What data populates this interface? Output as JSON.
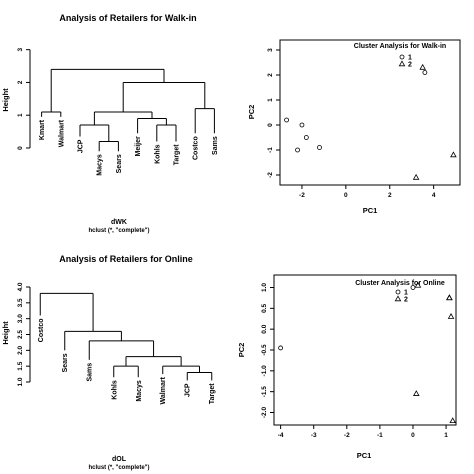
{
  "chart_data": [
    {
      "type": "dendrogram",
      "title": "Analysis of Retailers for Walk-in",
      "ylabel": "Height",
      "xlabel": "dWK",
      "sub": "hclust (*, \"complete\")",
      "yticks": [
        0,
        1,
        2,
        3
      ],
      "ylim": [
        0,
        3.6
      ],
      "leaves": [
        "Kmart",
        "Walmart",
        "JCP",
        "Macys",
        "Sears",
        "Meijer",
        "Kohls",
        "Target",
        "Costco",
        "Sams"
      ],
      "merges": [
        {
          "left": "Macys",
          "right": "Sears",
          "height": 0.2
        },
        {
          "left": "Kohls",
          "right": "Target",
          "height": 0.7
        },
        {
          "left": "Costco",
          "right": "Sams",
          "height": 1.2
        },
        {
          "left": "Meijer",
          "right": "Kohls+Target",
          "height": 0.9
        },
        {
          "left": "JCP",
          "right": "Macys+Sears",
          "height": 0.7
        },
        {
          "left": "Kmart",
          "right": "Walmart",
          "height": 1.1
        },
        {
          "left": "JCP+Macys+Sears",
          "right": "Meijer+Kohls+Target",
          "height": 1.1
        },
        {
          "left": "JCP..Target",
          "right": "Costco+Sams",
          "height": 2.0
        },
        {
          "left": "Kmart+Walmart",
          "right": "JCP..Sams",
          "height": 2.4
        }
      ]
    },
    {
      "type": "scatter",
      "title": "Cluster Analysis for Walk-in",
      "xlabel": "PC1",
      "ylabel": "PC2",
      "xlim": [
        -3,
        5.2
      ],
      "ylim": [
        -2.4,
        3.4
      ],
      "xticks": [
        -2,
        0,
        2,
        4
      ],
      "yticks": [
        -2,
        -1,
        0,
        1,
        2,
        3
      ],
      "legend": [
        {
          "name": "1",
          "marker": "circle"
        },
        {
          "name": "2",
          "marker": "triangle"
        }
      ],
      "legend_position": "top-right",
      "series": [
        {
          "name": "1",
          "marker": "circle",
          "points": [
            [
              -2.7,
              0.2
            ],
            [
              -2.2,
              -1.0
            ],
            [
              -2.0,
              0.0
            ],
            [
              -1.8,
              -0.5
            ],
            [
              -1.2,
              -0.9
            ],
            [
              3.6,
              2.1
            ]
          ]
        },
        {
          "name": "2",
          "marker": "triangle",
          "points": [
            [
              3.2,
              -2.1
            ],
            [
              4.9,
              -1.2
            ],
            [
              3.5,
              2.3
            ]
          ]
        }
      ]
    },
    {
      "type": "dendrogram",
      "title": "Analysis of Retailers for Online",
      "ylabel": "Height",
      "xlabel": "dOL",
      "sub": "hclust (*, \"complete\")",
      "yticks": [
        "1.0",
        "1.5",
        "2.0",
        "2.5",
        "3.0",
        "3.5",
        "4.0"
      ],
      "ylim": [
        1.0,
        4.0
      ],
      "leaves": [
        "Costco",
        "Sears",
        "Sams",
        "Kohls",
        "Macys",
        "Walmart",
        "JCP",
        "Target"
      ],
      "merges": [
        {
          "left": "Kohls",
          "right": "Macys",
          "height": 1.5
        },
        {
          "left": "JCP",
          "right": "Target",
          "height": 1.3
        },
        {
          "left": "Walmart",
          "right": "JCP+Target",
          "height": 1.5
        },
        {
          "left": "Kohls+Macys",
          "right": "Walmart+JCP+Target",
          "height": 1.8
        },
        {
          "left": "Sams",
          "right": "Kohls..Target",
          "height": 2.3
        },
        {
          "left": "Sears",
          "right": "Sams..Target",
          "height": 2.6
        },
        {
          "left": "Costco",
          "right": "Sears..Target",
          "height": 3.8
        }
      ]
    },
    {
      "type": "scatter",
      "title": "Cluster Analysis for Online",
      "xlabel": "PC1",
      "ylabel": "PC2",
      "xlim": [
        -4.2,
        1.3
      ],
      "ylim": [
        -2.3,
        1.3
      ],
      "xticks": [
        -4,
        -3,
        -2,
        -1,
        0,
        1
      ],
      "yticks": [
        "1.0",
        "0.5",
        "0.0",
        "-0.5",
        "-1.0",
        "-1.5",
        "-2.0"
      ],
      "legend": [
        {
          "name": "1",
          "marker": "circle"
        },
        {
          "name": "2",
          "marker": "triangle"
        }
      ],
      "legend_position": "top-right",
      "series": [
        {
          "name": "1",
          "marker": "circle",
          "points": [
            [
              -4.0,
              -0.45
            ],
            [
              0.0,
              1.0
            ]
          ]
        },
        {
          "name": "2",
          "marker": "triangle",
          "points": [
            [
              0.1,
              -1.55
            ],
            [
              1.1,
              0.75
            ],
            [
              1.15,
              0.3
            ],
            [
              1.2,
              -2.2
            ],
            [
              1.1,
              0.75
            ],
            [
              0.15,
              1.05
            ]
          ]
        }
      ]
    }
  ]
}
